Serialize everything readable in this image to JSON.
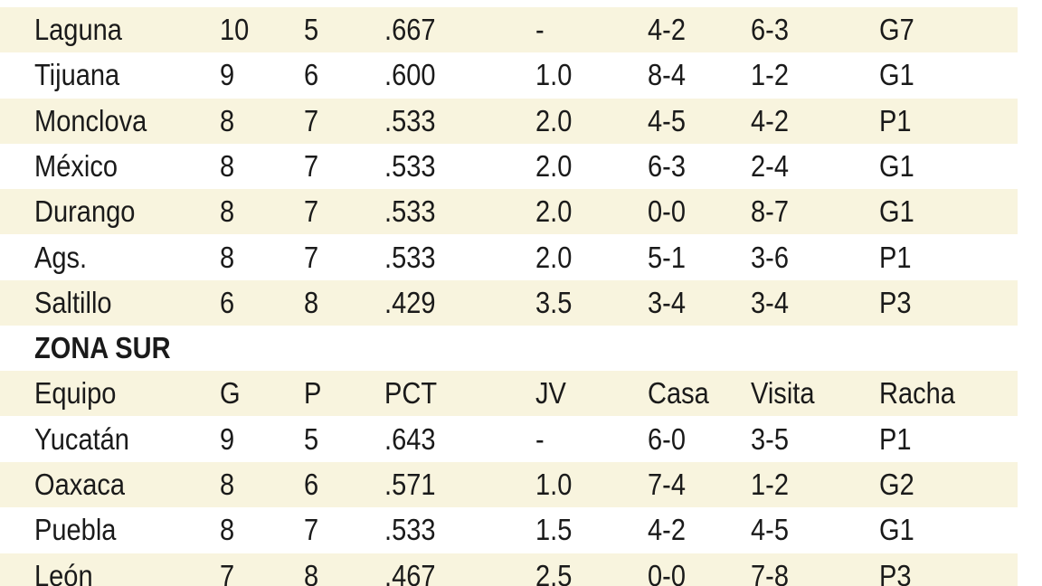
{
  "north": {
    "rows": [
      [
        "Laguna",
        "10",
        "5",
        ".667",
        "-",
        "4-2",
        "6-3",
        "G7"
      ],
      [
        "Tijuana",
        "9",
        "6",
        ".600",
        "1.0",
        "8-4",
        "1-2",
        "G1"
      ],
      [
        "Monclova",
        "8",
        "7",
        ".533",
        "2.0",
        "4-5",
        "4-2",
        "P1"
      ],
      [
        "México",
        "8",
        "7",
        ".533",
        "2.0",
        "6-3",
        "2-4",
        "G1"
      ],
      [
        "Durango",
        "8",
        "7",
        ".533",
        "2.0",
        "0-0",
        "8-7",
        "G1"
      ],
      [
        "Ags.",
        "8",
        "7",
        ".533",
        "2.0",
        "5-1",
        "3-6",
        "P1"
      ],
      [
        "Saltillo",
        "6",
        "8",
        ".429",
        "3.5",
        "3-4",
        "3-4",
        "P3"
      ]
    ]
  },
  "south": {
    "title": "ZONA SUR",
    "header": [
      "Equipo",
      "G",
      "P",
      "PCT",
      "JV",
      "Casa",
      "Visita",
      "Racha"
    ],
    "rows": [
      [
        "Yucatán",
        "9",
        "5",
        ".643",
        "-",
        "6-0",
        "3-5",
        "P1"
      ],
      [
        "Oaxaca",
        "8",
        "6",
        ".571",
        "1.0",
        "7-4",
        "1-2",
        "G2"
      ],
      [
        "Puebla",
        "8",
        "7",
        ".533",
        "1.5",
        "4-2",
        "4-5",
        "G1"
      ],
      [
        "León",
        "7",
        "8",
        ".467",
        "2.5",
        "0-0",
        "7-8",
        "P3"
      ]
    ]
  }
}
